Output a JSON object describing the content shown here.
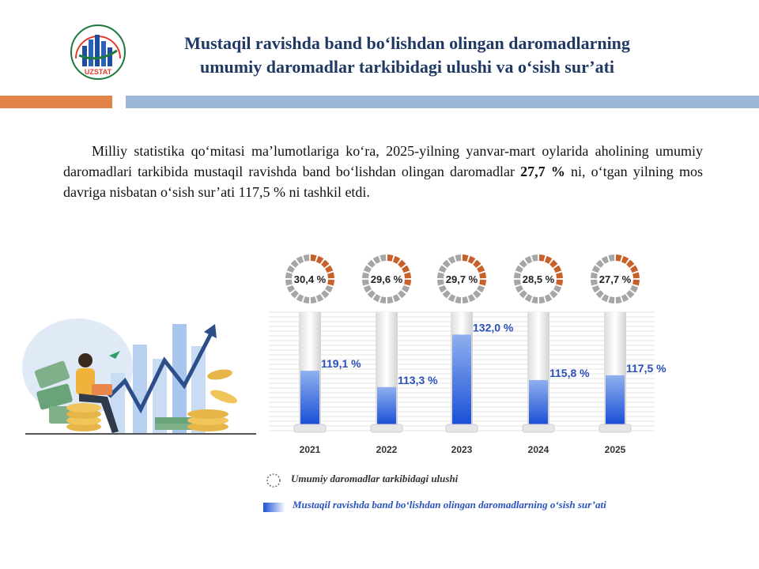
{
  "header": {
    "logo_text": "UZSTAT",
    "title_line1": "Mustaqil ravishda band bo‘lishdan olingan daromadlarning",
    "title_line2": "umumiy daromadlar tarkibidagi ulushi va o‘sish sur’ati"
  },
  "intro": {
    "part1": "Milliy statistika qo‘mitasi ma’lumotlariga ko‘ra, 2025-yilning yanvar-mart oylarida aholining umumiy daromadlari tarkibida mustaqil ravishda band bo‘lishdan olingan daromadlar ",
    "highlight": "27,7 %",
    "part2": " ni, o‘tgan yilning mos davriga nisbatan o‘sish sur’ati 117,5 % ni  tashkil etdi."
  },
  "chart_data": {
    "type": "bar",
    "categories": [
      "2021",
      "2022",
      "2023",
      "2024",
      "2025"
    ],
    "series": [
      {
        "name": "Mustaqil ravishda band bo‘lishdan olingan daromadlarning o‘sish sur’ati",
        "values": [
          119.1,
          113.3,
          132.0,
          115.8,
          117.5
        ],
        "labels": [
          "119,1 %",
          "113,3 %",
          "132,0 %",
          "115,8 %",
          "117,5 %"
        ]
      },
      {
        "name": "Umumiy daromadlar tarkibidagi ulushi",
        "values": [
          30.4,
          29.6,
          29.7,
          28.5,
          27.7
        ],
        "labels": [
          "30,4 %",
          "29,6 %",
          "29,7 %",
          "28,5 %",
          "27,7 %"
        ]
      }
    ],
    "bar_color": "#1a4fd6",
    "ring_filled_color": "#c8602a",
    "ring_empty_color": "#a6a6a6"
  },
  "legend": {
    "ring_label": "Umumiy daromadlar tarkibidagi ulushi",
    "bar_label": "Mustaqil ravishda band bo‘lishdan olingan daromadlarning o‘sish sur’ati"
  }
}
